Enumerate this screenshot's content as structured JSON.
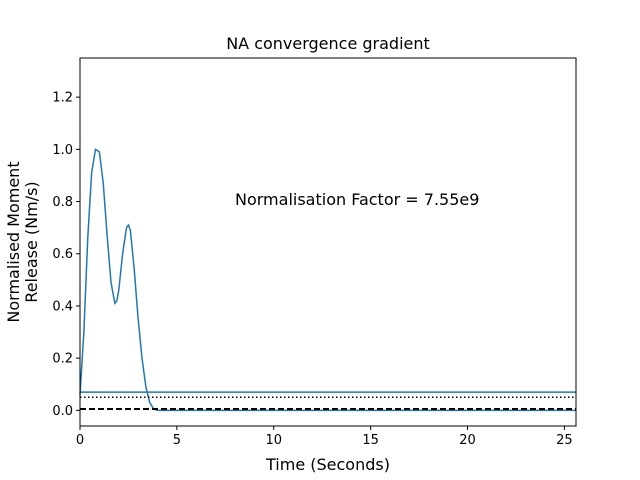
{
  "chart_data": {
    "type": "line",
    "title": "NA convergence gradient",
    "xlabel": "Time (Seconds)",
    "ylabel_lines": [
      "Normalised Moment",
      "Release (Nm/s)"
    ],
    "xlim": [
      0,
      25.6
    ],
    "ylim": [
      -0.06,
      1.35
    ],
    "xticks": [
      0,
      5,
      10,
      15,
      20,
      25
    ],
    "yticks": [
      0.0,
      0.2,
      0.4,
      0.6,
      0.8,
      1.0,
      1.2
    ],
    "xtick_labels": [
      "0",
      "5",
      "10",
      "15",
      "20",
      "25"
    ],
    "ytick_labels": [
      "0.0",
      "0.2",
      "0.4",
      "0.6",
      "0.8",
      "1.0",
      "1.2"
    ],
    "grid": false,
    "annotation": {
      "text": "Normalisation Factor = 7.55e9",
      "x": 8.0,
      "y": 0.81
    },
    "colors": {
      "curve": "#1f77b4",
      "hline": "#1f77b4",
      "dotted": "#000000",
      "dashed": "#000000"
    },
    "series": [
      {
        "style": "solid",
        "x": [
          0,
          0.2,
          0.4,
          0.6,
          0.8,
          1.0,
          1.2,
          1.4,
          1.6,
          1.8,
          1.9,
          2.0,
          2.2,
          2.4,
          2.5,
          2.6,
          2.8,
          3.0,
          3.2,
          3.4,
          3.6,
          3.8,
          4.0,
          4.3,
          25.6
        ],
        "y": [
          0.06,
          0.3,
          0.66,
          0.91,
          1.0,
          0.99,
          0.87,
          0.67,
          0.49,
          0.41,
          0.42,
          0.46,
          0.6,
          0.7,
          0.71,
          0.69,
          0.54,
          0.35,
          0.2,
          0.09,
          0.03,
          0.005,
          0.0,
          0.0,
          0.0
        ]
      },
      {
        "style": "hline",
        "y": 0.07
      },
      {
        "style": "dotted",
        "y": 0.05
      },
      {
        "style": "dashed",
        "y": 0.005
      }
    ]
  }
}
